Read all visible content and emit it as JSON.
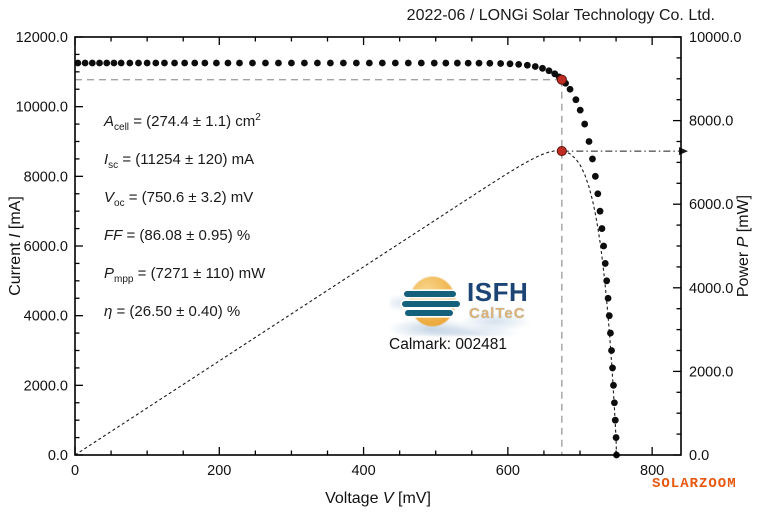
{
  "title": "2022-06 / LONGi Solar Technology Co. Ltd.",
  "calmark": "Calmark: 002481",
  "watermark": "SOLARZOOM",
  "logo": {
    "org": "ISFH",
    "division": "CalTeC"
  },
  "parameters": [
    {
      "symbol": "A",
      "sub": "cell",
      "rest": " = (274.4 ± 1.1) cm",
      "sup": "2"
    },
    {
      "symbol": "I",
      "sub": "sc",
      "rest": " = (11254 ± 120) mA",
      "sup": ""
    },
    {
      "symbol": "V",
      "sub": "oc",
      "rest": " = (750.6 ± 3.2) mV",
      "sup": ""
    },
    {
      "symbol": "FF",
      "sub": "",
      "rest": " = (86.08 ± 0.95) %",
      "sup": ""
    },
    {
      "symbol": "P",
      "sub": "mpp",
      "rest": " = (7271 ± 110) mW",
      "sup": ""
    },
    {
      "symbol": "η",
      "sub": "",
      "rest": " = (26.50 ± 0.40) %",
      "sup": ""
    }
  ],
  "chart_data": {
    "type": "scatter",
    "title": "2022-06 / LONGi Solar Technology Co. Ltd.",
    "xlabel": {
      "pre": "Voltage ",
      "var": "V",
      "post": " [mV]"
    },
    "ylabel_left": {
      "pre": "Current ",
      "var": "I",
      "post": " [mA]"
    },
    "ylabel_right": {
      "pre": "Power ",
      "var": "P",
      "post": " [mW]"
    },
    "xlim": [
      0,
      840
    ],
    "ylim_left": [
      0,
      12000
    ],
    "ylim_right": [
      0,
      10000
    ],
    "x_major_ticks": [
      0,
      200,
      400,
      600,
      800
    ],
    "x_minor_step": 50,
    "y_left_major_ticks": [
      0,
      2000,
      4000,
      6000,
      8000,
      10000,
      12000
    ],
    "y_right_major_ticks": [
      0,
      2000,
      4000,
      6000,
      8000,
      10000
    ],
    "y_minor_step": 500,
    "grid": false,
    "measured_values": {
      "area_cm2": 274.4,
      "isc_ma": 11254,
      "voc_mv": 750.6,
      "ff_pct": 86.08,
      "pmpp_mw": 7271,
      "efficiency_pct": 26.5
    },
    "mpp": {
      "v": 674.8,
      "i": 10774,
      "p": 7271
    },
    "power_curve": "P[mW] = V[mV] × I[mA] / 1000, drawn as dashed line from iv_points plus origin",
    "iv_points": [
      [
        4,
        11254
      ],
      [
        14,
        11254
      ],
      [
        24,
        11254
      ],
      [
        34,
        11254
      ],
      [
        44,
        11254
      ],
      [
        54,
        11254
      ],
      [
        64,
        11254
      ],
      [
        76,
        11254
      ],
      [
        88,
        11254
      ],
      [
        100,
        11254
      ],
      [
        112,
        11254
      ],
      [
        124,
        11254
      ],
      [
        138,
        11254
      ],
      [
        152,
        11254
      ],
      [
        166,
        11254
      ],
      [
        180,
        11254
      ],
      [
        196,
        11254
      ],
      [
        212,
        11254
      ],
      [
        228,
        11254
      ],
      [
        246,
        11254
      ],
      [
        264,
        11254
      ],
      [
        282,
        11254
      ],
      [
        300,
        11254
      ],
      [
        318,
        11254
      ],
      [
        336,
        11254
      ],
      [
        354,
        11254
      ],
      [
        372,
        11254
      ],
      [
        390,
        11254
      ],
      [
        408,
        11254
      ],
      [
        426,
        11253
      ],
      [
        444,
        11253
      ],
      [
        462,
        11253
      ],
      [
        480,
        11253
      ],
      [
        498,
        11252
      ],
      [
        514,
        11252
      ],
      [
        530,
        11252
      ],
      [
        545,
        11251
      ],
      [
        560,
        11250
      ],
      [
        575,
        11247
      ],
      [
        590,
        11240
      ],
      [
        603,
        11230
      ],
      [
        615,
        11215
      ],
      [
        627,
        11190
      ],
      [
        638,
        11153
      ],
      [
        648,
        11101
      ],
      [
        657,
        11031
      ],
      [
        665,
        10943
      ],
      [
        671,
        10854
      ],
      [
        674.8,
        10774
      ],
      [
        680,
        10672
      ],
      [
        686.2,
        10500
      ],
      [
        694.3,
        10200
      ],
      [
        700.3,
        9900
      ],
      [
        706.5,
        9500
      ],
      [
        712.5,
        9000
      ],
      [
        717.3,
        8500
      ],
      [
        721.3,
        8000
      ],
      [
        724.7,
        7500
      ],
      [
        727.8,
        7000
      ],
      [
        730.4,
        6500
      ],
      [
        732.8,
        6000
      ],
      [
        735,
        5500
      ],
      [
        737,
        5000
      ],
      [
        738.9,
        4500
      ],
      [
        740.6,
        4000
      ],
      [
        742.2,
        3500
      ],
      [
        743.7,
        3000
      ],
      [
        745.1,
        2500
      ],
      [
        746.4,
        2000
      ],
      [
        747.7,
        1500
      ],
      [
        748.9,
        1000
      ],
      [
        750,
        500
      ],
      [
        750.6,
        0
      ]
    ],
    "colors": {
      "dots": "#0d0d0d",
      "mpp_marker": "#bf2c22",
      "mpp_marker_edge": "#5e120c",
      "guide": "#a2a2a2",
      "axis": "#000000",
      "power_line": "#1a1a1a",
      "watermark": "#e8570f"
    }
  }
}
